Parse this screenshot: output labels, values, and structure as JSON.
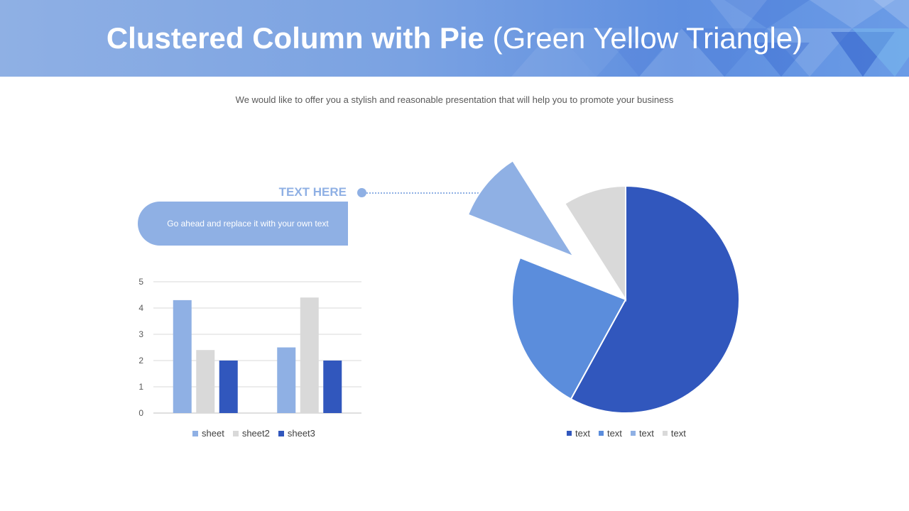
{
  "header": {
    "title_bold": "Clustered Column with Pie",
    "title_rest": "(Green Yellow Triangle)"
  },
  "subtitle": "We would like to offer you a stylish and reasonable presentation that will help you to promote your business",
  "callout": {
    "heading": "TEXT HERE",
    "body": "Go ahead and replace it with your own text"
  },
  "colors": {
    "light_blue": "#8fb0e4",
    "gray": "#d9d9d9",
    "dark_blue": "#3157bd",
    "mid_blue": "#5b8ddc"
  },
  "chart_data": [
    {
      "type": "bar",
      "categories": [
        "",
        ""
      ],
      "series": [
        {
          "name": "sheet",
          "values": [
            4.3,
            2.5
          ],
          "color": "#8fb0e4"
        },
        {
          "name": "sheet2",
          "values": [
            2.4,
            4.4
          ],
          "color": "#d9d9d9"
        },
        {
          "name": "sheet3",
          "values": [
            2.0,
            2.0
          ],
          "color": "#3157bd"
        }
      ],
      "ylim": [
        0,
        5
      ],
      "yticks": [
        "0",
        "1",
        "2",
        "3",
        "4",
        "5"
      ],
      "grid": true,
      "legend": "bottom"
    },
    {
      "type": "pie",
      "labels": [
        "text",
        "text",
        "text",
        "text"
      ],
      "values": [
        58,
        23,
        10,
        9
      ],
      "colors": [
        "#3157bd",
        "#5b8ddc",
        "#8fb0e4",
        "#d9d9d9"
      ],
      "exploded": [
        false,
        false,
        true,
        false
      ],
      "legend": "bottom"
    }
  ]
}
